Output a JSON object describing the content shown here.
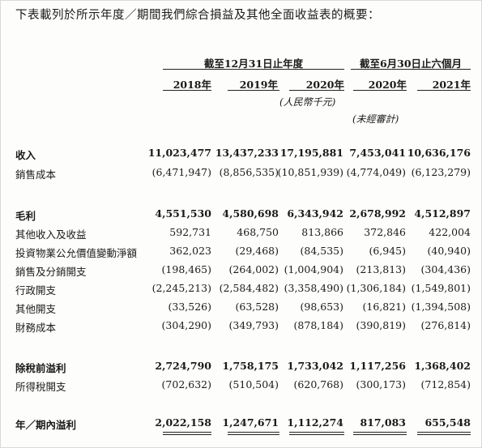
{
  "intro": "下表載列於所示年度／期間我們綜合損益及其他全面收益表的概要：",
  "header": {
    "group_year": "截至12月31日止年度",
    "group_half": "截至6月30日止六個月",
    "years": [
      "2018年",
      "2019年",
      "2020年",
      "2020年",
      "2021年"
    ],
    "unit": "(人民幣千元)",
    "unaudited": "(未經審計)"
  },
  "rows": [
    {
      "label": "收入",
      "bold": true,
      "values": [
        "11,023,477",
        "13,437,233",
        "17,195,881",
        "7,453,041",
        "10,636,176"
      ]
    },
    {
      "label": "銷售成本",
      "bold": false,
      "values": [
        "(6,471,947)",
        "(8,856,535)",
        "(10,851,939)",
        "(4,774,049)",
        "(6,123,279)"
      ]
    },
    {
      "label": "毛利",
      "bold": true,
      "values": [
        "4,551,530",
        "4,580,698",
        "6,343,942",
        "2,678,992",
        "4,512,897"
      ]
    },
    {
      "label": "其他收入及收益",
      "bold": false,
      "values": [
        "592,731",
        "468,750",
        "813,866",
        "372,846",
        "422,004"
      ]
    },
    {
      "label": "投資物業公允價值變動淨額",
      "bold": false,
      "values": [
        "362,023",
        "(29,468)",
        "(84,535)",
        "(6,945)",
        "(40,940)"
      ]
    },
    {
      "label": "銷售及分銷開支",
      "bold": false,
      "values": [
        "(198,465)",
        "(264,002)",
        "(1,004,904)",
        "(213,813)",
        "(304,436)"
      ]
    },
    {
      "label": "行政開支",
      "bold": false,
      "values": [
        "(2,245,213)",
        "(2,584,482)",
        "(3,358,490)",
        "(1,306,184)",
        "(1,549,801)"
      ]
    },
    {
      "label": "其他開支",
      "bold": false,
      "values": [
        "(33,526)",
        "(63,528)",
        "(98,653)",
        "(16,821)",
        "(1,394,508)"
      ]
    },
    {
      "label": "財務成本",
      "bold": false,
      "values": [
        "(304,290)",
        "(349,793)",
        "(878,184)",
        "(390,819)",
        "(276,814)"
      ]
    },
    {
      "label": "除稅前溢利",
      "bold": true,
      "values": [
        "2,724,790",
        "1,758,175",
        "1,733,042",
        "1,117,256",
        "1,368,402"
      ]
    },
    {
      "label": "所得稅開支",
      "bold": false,
      "values": [
        "(702,632)",
        "(510,504)",
        "(620,768)",
        "(300,173)",
        "(712,854)"
      ]
    },
    {
      "label": "年／期內溢利",
      "bold": true,
      "values": [
        "2,022,158",
        "1,247,671",
        "1,112,274",
        "817,083",
        "655,548"
      ]
    }
  ]
}
